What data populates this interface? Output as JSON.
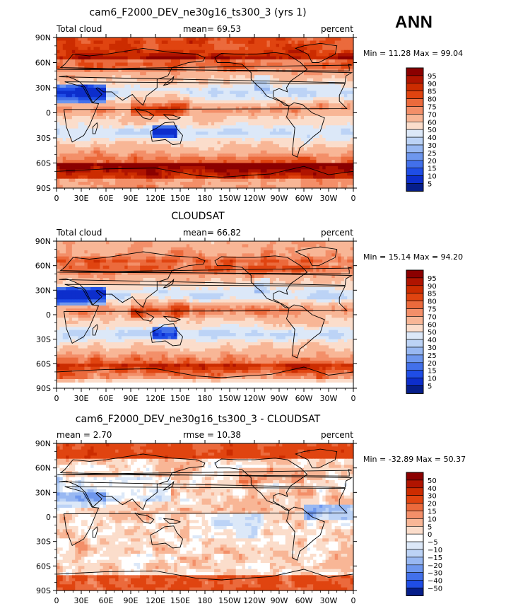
{
  "season": "ANN",
  "chart_data": [
    {
      "type": "heatmap",
      "title": "cam6_F2000_DEV_ne30g16_ts300_3 (yrs 1)",
      "left_label": "Total cloud",
      "center_label": "mean=  69.53",
      "right_label": "percent",
      "min_text": "Min =  11.28 Max =  99.04",
      "field": {
        "min": 11.28,
        "max": 99.04,
        "mean": 69.53
      },
      "xticks": [
        "0",
        "30E",
        "60E",
        "90E",
        "120E",
        "150E",
        "180",
        "150W",
        "120W",
        "90W",
        "60W",
        "30W",
        "0"
      ],
      "yticks": [
        "90N",
        "60N",
        "30N",
        "0",
        "30S",
        "60S",
        "90S"
      ],
      "colorbar": {
        "labels": [
          "95",
          "90",
          "85",
          "80",
          "75",
          "70",
          "60",
          "50",
          "40",
          "30",
          "25",
          "20",
          "15",
          "10",
          "5"
        ],
        "colors": [
          "#8b0000",
          "#b01400",
          "#cc2c00",
          "#e04410",
          "#eb6a3c",
          "#f38f69",
          "#f8b696",
          "#fbddcb",
          "#dce8f8",
          "#bcd3f6",
          "#98b8f2",
          "#6e97ee",
          "#4270ea",
          "#1f4de6",
          "#0d2ecc",
          "#061e8a"
        ]
      }
    },
    {
      "type": "heatmap",
      "title": "CLOUDSAT",
      "left_label": "Total cloud",
      "center_label": "mean=  66.82",
      "right_label": "percent",
      "min_text": "Min =  15.14 Max =  94.20",
      "field": {
        "min": 15.14,
        "max": 94.2,
        "mean": 66.82
      },
      "xticks": [
        "0",
        "30E",
        "60E",
        "90E",
        "120E",
        "150E",
        "180",
        "150W",
        "120W",
        "90W",
        "60W",
        "30W",
        "0"
      ],
      "yticks": [
        "90N",
        "60N",
        "30N",
        "0",
        "30S",
        "60S",
        "90S"
      ],
      "colorbar": {
        "labels": [
          "95",
          "90",
          "85",
          "80",
          "75",
          "70",
          "60",
          "50",
          "40",
          "30",
          "25",
          "20",
          "15",
          "10",
          "5"
        ],
        "colors": [
          "#8b0000",
          "#b01400",
          "#cc2c00",
          "#e04410",
          "#eb6a3c",
          "#f38f69",
          "#f8b696",
          "#fbddcb",
          "#dce8f8",
          "#bcd3f6",
          "#98b8f2",
          "#6e97ee",
          "#4270ea",
          "#1f4de6",
          "#0d2ecc",
          "#061e8a"
        ]
      }
    },
    {
      "type": "heatmap",
      "title": "cam6_F2000_DEV_ne30g16_ts300_3 - CLOUDSAT",
      "left_label": "mean =   2.70",
      "center_label": "rmse =  10.38",
      "right_label": "percent",
      "min_text": "Min = -32.89 Max =  50.37",
      "field": {
        "min": -32.89,
        "max": 50.37,
        "mean": 2.7,
        "rmse": 10.38
      },
      "xticks": [
        "0",
        "30E",
        "60E",
        "90E",
        "120E",
        "150E",
        "180",
        "150W",
        "120W",
        "90W",
        "60W",
        "30W",
        "0"
      ],
      "yticks": [
        "90N",
        "60N",
        "30N",
        "0",
        "30S",
        "60S",
        "90S"
      ],
      "colorbar": {
        "labels": [
          "50",
          "40",
          "30",
          "20",
          "15",
          "10",
          "5",
          "0",
          "−5",
          "−10",
          "−15",
          "−20",
          "−30",
          "−40",
          "−50"
        ],
        "colors": [
          "#8b0000",
          "#b01400",
          "#cc2c00",
          "#e04410",
          "#eb6a3c",
          "#f38f69",
          "#f8b696",
          "#fbddcb",
          "#ffffff",
          "#dce8f8",
          "#bcd3f6",
          "#98b8f2",
          "#6e97ee",
          "#4270ea",
          "#1f4de6",
          "#061e8a"
        ]
      }
    }
  ]
}
